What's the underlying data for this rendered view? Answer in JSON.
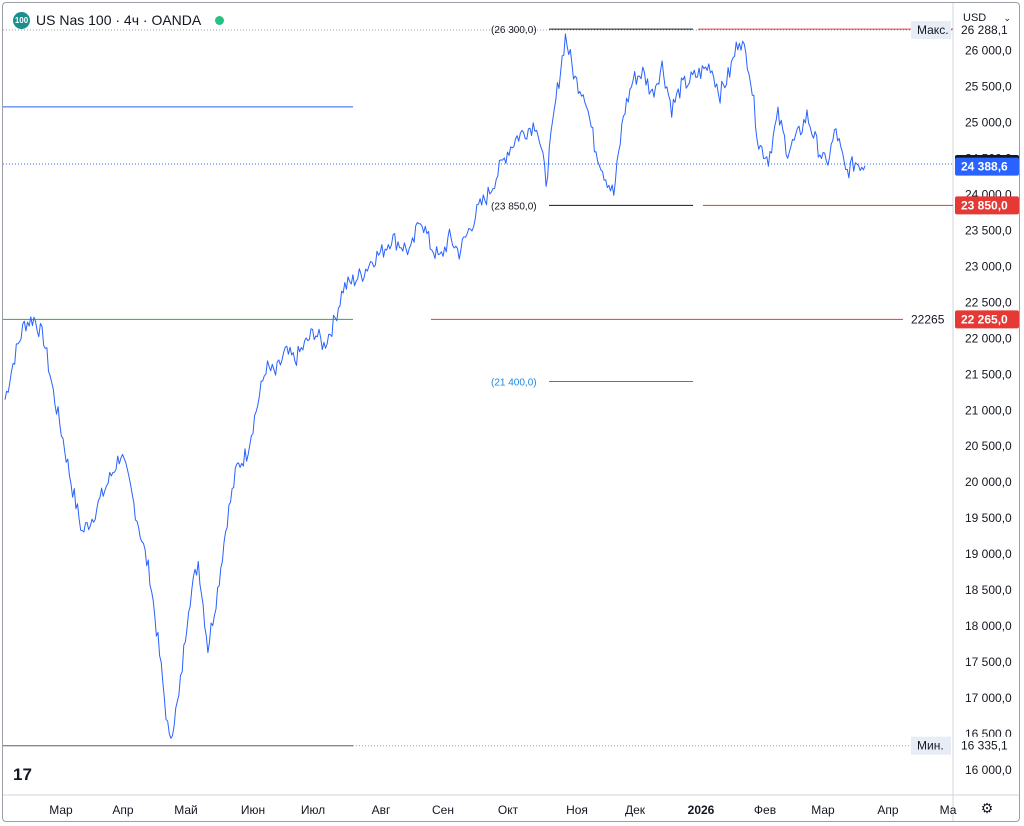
{
  "header": {
    "badge": "100",
    "title": "US Nas 100 · 4ч · OANDA"
  },
  "currency_button": {
    "label": "USD",
    "caret": "⌄"
  },
  "logo_text": "17",
  "settings_icon": "⚙",
  "colors": {
    "price_line": "#2962ff",
    "red": "#e53935",
    "green": "#43a047",
    "blue": "#1e88e5",
    "black": "#131722"
  },
  "chart_data": {
    "type": "line",
    "series": [
      {
        "values": [
          21150,
          21750,
          22200,
          22280,
          22000,
          21250,
          20600,
          19900,
          19300,
          19500,
          19800,
          20100,
          20400,
          19900,
          19300,
          18700,
          17600,
          16400,
          17000,
          18300,
          18900,
          17700,
          18500,
          19500,
          20200,
          20400,
          21000,
          21600,
          21500,
          21800,
          21700,
          21900,
          22100,
          21900,
          22200,
          22700,
          22800,
          22900,
          23100,
          23200,
          23400,
          23300,
          23200,
          23700,
          23300,
          23100,
          23400,
          23200,
          23500,
          23800,
          24000,
          24300,
          24600,
          24800,
          24900,
          25000,
          24200,
          25300,
          26200,
          25600,
          25400,
          24700,
          24300,
          24000,
          25100,
          25600,
          25700,
          25400,
          25800,
          25200,
          25500,
          25600,
          25700,
          25800,
          25400,
          25700,
          26200,
          25800,
          24700,
          24500,
          25100,
          24600,
          24800,
          25100,
          24700,
          24400,
          24900,
          24300,
          24450,
          24400
        ]
      }
    ],
    "x_labels": [
      "Мар",
      "Апр",
      "Май",
      "Июн",
      "Июл",
      "Авг",
      "Сен",
      "Окт",
      "Ноя",
      "Дек",
      "2026",
      "Фев",
      "Мар",
      "Апр",
      "Ма"
    ],
    "y_ticks": [
      "16 000,0",
      "16 500,0",
      "17 000,0",
      "17 500,0",
      "18 000,0",
      "18 500,0",
      "19 000,0",
      "19 500,0",
      "20 000,0",
      "20 500,0",
      "21 000,0",
      "21 500,0",
      "22 000,0",
      "22 500,0",
      "23 000,0",
      "23 500,0",
      "24 000,0",
      "24 500,0",
      "25 000,0",
      "25 500,0",
      "26 000,0"
    ],
    "y_tick_values": [
      16000,
      16500,
      17000,
      17500,
      18000,
      18500,
      19000,
      19500,
      20000,
      20500,
      21000,
      21500,
      22000,
      22500,
      23000,
      23500,
      24000,
      24500,
      25000,
      25500,
      26000
    ],
    "ylim": [
      15650,
      26650
    ],
    "levels": [
      {
        "value": 26300,
        "label": "(26 300,0)",
        "color": "#131722"
      },
      {
        "value": 23850,
        "label": "(23 850,0)",
        "color": "#131722"
      },
      {
        "value": 21400,
        "label": "(21 400,0)",
        "color": "#1e88e5"
      }
    ],
    "horizontal_lines": [
      {
        "value": 25220,
        "color": "#2962ff"
      },
      {
        "value": 22265,
        "color": "#43a047"
      },
      {
        "value": 16335,
        "color": "#5d606b"
      }
    ],
    "price_tags": [
      {
        "value": 26288.1,
        "label": "26 288,1",
        "style": "plain",
        "caption": "Макс."
      },
      {
        "value": 24425.6,
        "label": "24 425,6",
        "style": "dark"
      },
      {
        "value": 24388.6,
        "label": "24 388,6",
        "style": "blue"
      },
      {
        "value": 23850,
        "label": "23 850,0",
        "style": "red"
      },
      {
        "value": 22265,
        "label": "22 265,0",
        "style": "red",
        "caption": "22265"
      },
      {
        "value": 16335.1,
        "label": "16 335,1",
        "style": "plain",
        "caption": "Мин."
      }
    ]
  }
}
